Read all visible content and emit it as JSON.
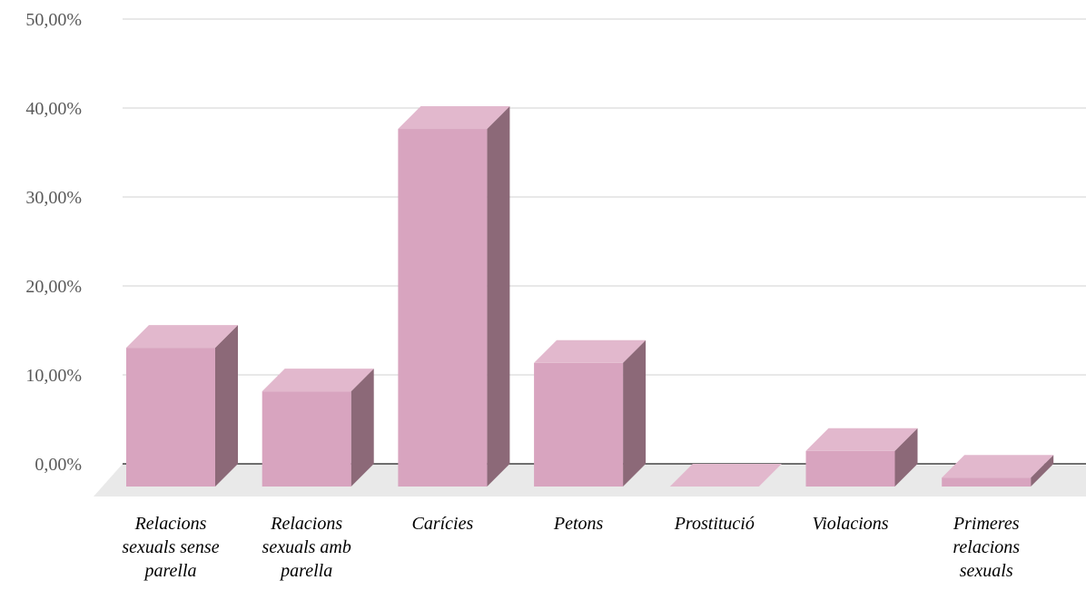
{
  "chart_data": {
    "type": "bar",
    "title": "",
    "xlabel": "",
    "ylabel": "",
    "categories": [
      [
        "Relacions",
        "sexuals sense",
        "parella"
      ],
      [
        "Relacions",
        "sexuals amb",
        "parella"
      ],
      [
        "Carícies"
      ],
      [
        "Petons"
      ],
      [
        "Prostitució"
      ],
      [
        "Violacions"
      ],
      [
        "Primeres",
        "relacions",
        "sexuals"
      ]
    ],
    "values": [
      15.6,
      10.7,
      40.2,
      13.9,
      0.0,
      4.0,
      1.0
    ],
    "ylim": [
      0,
      50
    ],
    "yticks": [
      "0,00%",
      "10,00%",
      "20,00%",
      "30,00%",
      "40,00%",
      "50,00%"
    ],
    "grid": true,
    "style": "3d-column",
    "colors": {
      "front": "#d8a4bf",
      "top": "#e2b8cd",
      "side": "#8c6978",
      "floor": "#e9e9e9",
      "grid": "#d0d0d0",
      "axis": "#404040"
    }
  }
}
